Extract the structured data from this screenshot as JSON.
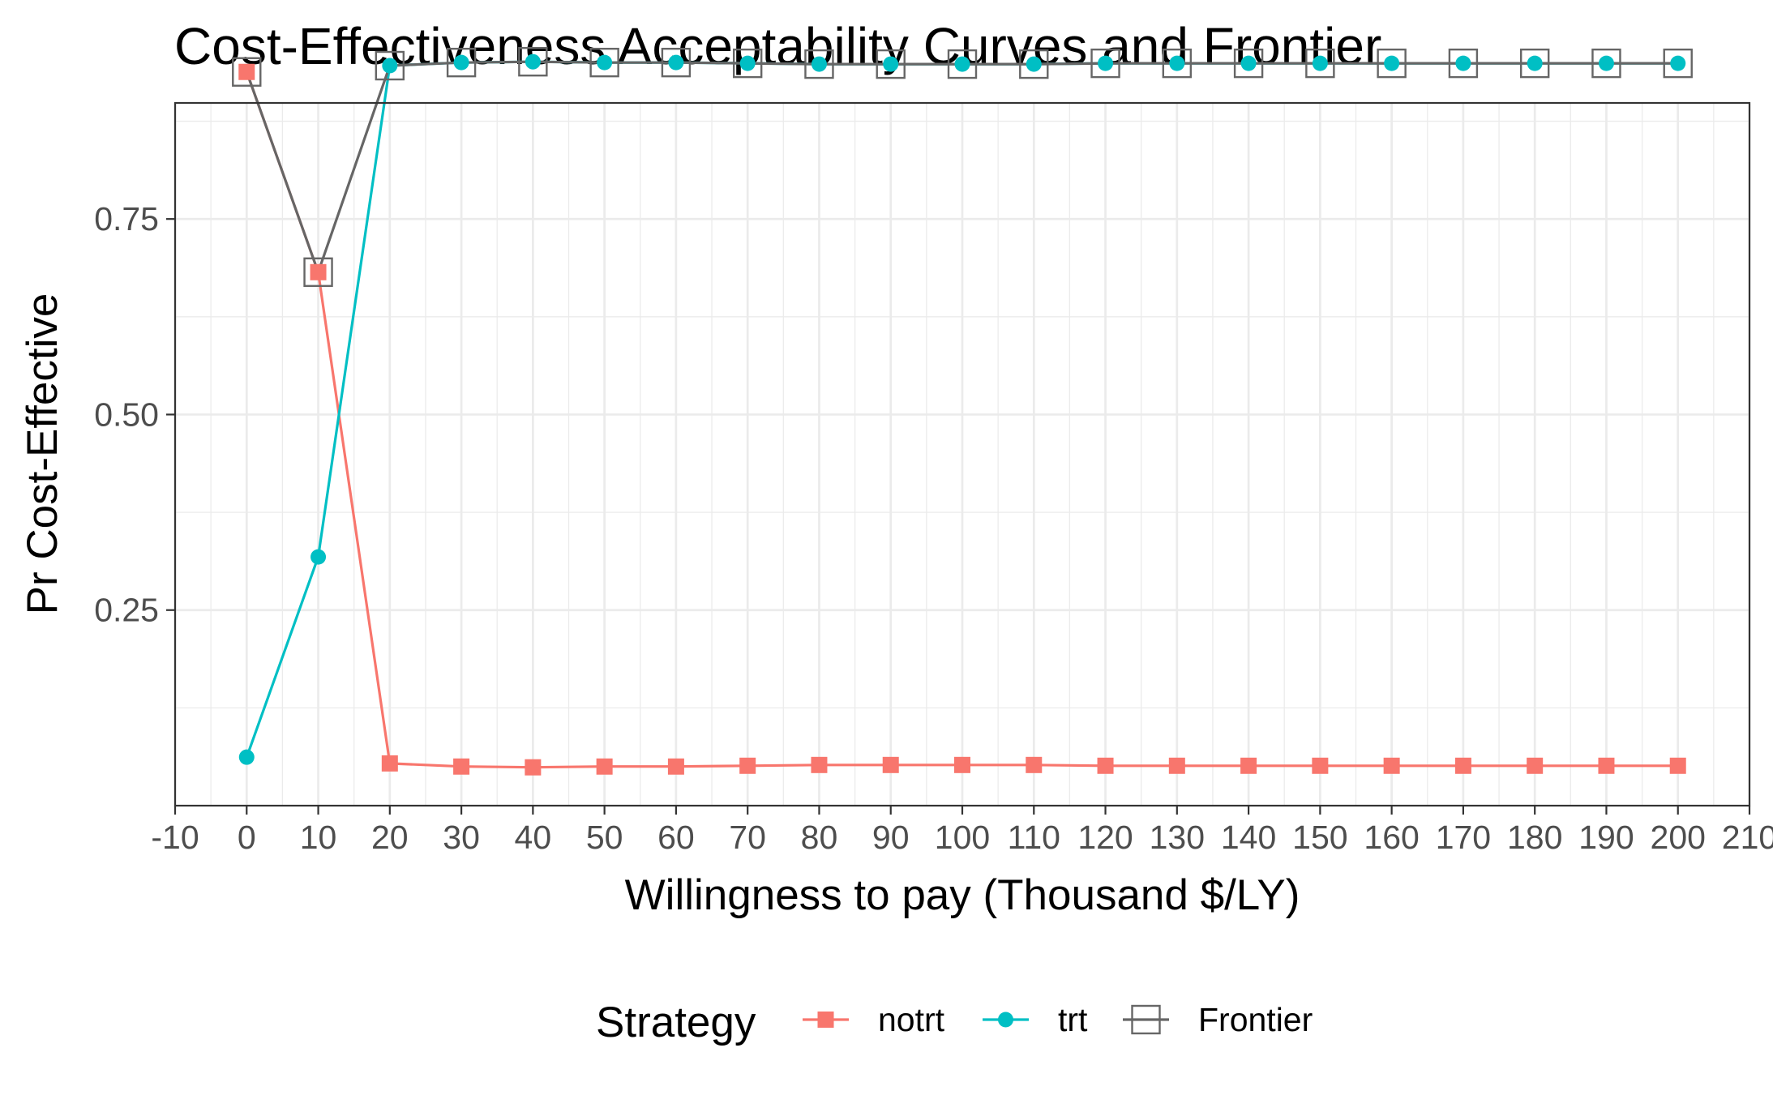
{
  "chart_data": {
    "type": "line",
    "title": "Cost-Effectiveness Acceptability Curves and Frontier",
    "xlabel": "Willingness to pay (Thousand $/LY)",
    "ylabel": "Pr Cost-Effective",
    "xlim": [
      -10,
      210
    ],
    "ylim": [
      0,
      1
    ],
    "x_ticks": [
      "-10",
      "0",
      "10",
      "20",
      "30",
      "40",
      "50",
      "60",
      "70",
      "80",
      "90",
      "100",
      "110",
      "120",
      "130",
      "140",
      "150",
      "160",
      "170",
      "180",
      "190",
      "200",
      "210"
    ],
    "y_ticks": [
      "0.25",
      "0.50",
      "0.75"
    ],
    "grid": true,
    "legend_position": "bottom",
    "legend_title": "Strategy",
    "x": [
      0,
      10,
      20,
      30,
      40,
      50,
      60,
      70,
      80,
      90,
      100,
      110,
      120,
      130,
      140,
      150,
      160,
      170,
      180,
      190,
      200
    ],
    "series": [
      {
        "name": "notrt",
        "color": "#F8766D",
        "marker": "square",
        "values": [
          0.938,
          0.682,
          0.054,
          0.05,
          0.049,
          0.05,
          0.05,
          0.051,
          0.052,
          0.052,
          0.052,
          0.052,
          0.051,
          0.051,
          0.051,
          0.051,
          0.051,
          0.051,
          0.051,
          0.051,
          0.051
        ]
      },
      {
        "name": "trt",
        "color": "#00BFC4",
        "marker": "circle",
        "values": [
          0.062,
          0.318,
          0.946,
          0.95,
          0.951,
          0.95,
          0.95,
          0.949,
          0.948,
          0.948,
          0.948,
          0.948,
          0.949,
          0.949,
          0.949,
          0.949,
          0.949,
          0.949,
          0.949,
          0.949,
          0.949
        ]
      },
      {
        "name": "Frontier",
        "color": "#666666",
        "marker": "open-square",
        "values": [
          0.938,
          0.682,
          0.946,
          0.95,
          0.951,
          0.95,
          0.95,
          0.949,
          0.948,
          0.948,
          0.948,
          0.948,
          0.949,
          0.949,
          0.949,
          0.949,
          0.949,
          0.949,
          0.949,
          0.949,
          0.949
        ]
      }
    ]
  }
}
